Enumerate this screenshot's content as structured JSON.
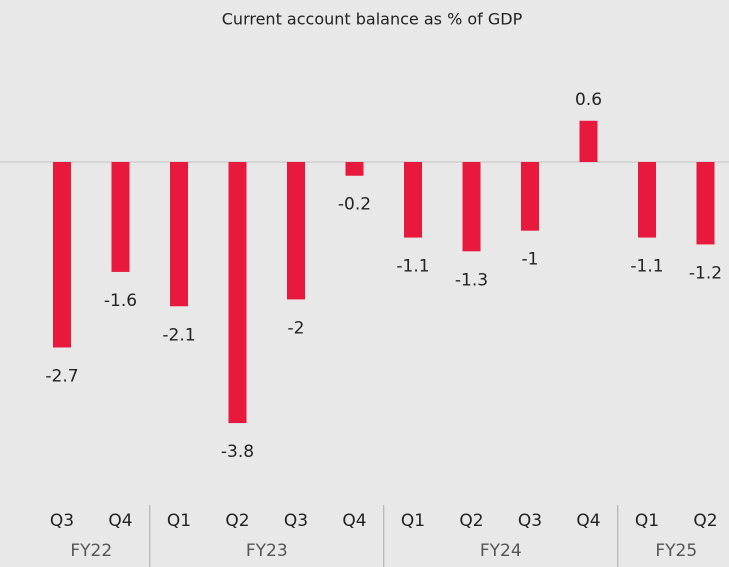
{
  "chart_data": {
    "type": "bar",
    "title": "Current account balance as % of GDP",
    "groups": [
      {
        "name": "FY22",
        "categories": [
          "Q3",
          "Q4"
        ]
      },
      {
        "name": "FY23",
        "categories": [
          "Q1",
          "Q2",
          "Q3",
          "Q4"
        ]
      },
      {
        "name": "FY24",
        "categories": [
          "Q1",
          "Q2",
          "Q3",
          "Q4"
        ]
      },
      {
        "name": "FY25",
        "categories": [
          "Q1",
          "Q2"
        ]
      }
    ],
    "values": [
      -2.7,
      -1.6,
      -2.1,
      -3.8,
      -2,
      -0.2,
      -1.1,
      -1.3,
      -1,
      0.6,
      -1.1,
      -1.2
    ],
    "color": "#e8193c"
  }
}
